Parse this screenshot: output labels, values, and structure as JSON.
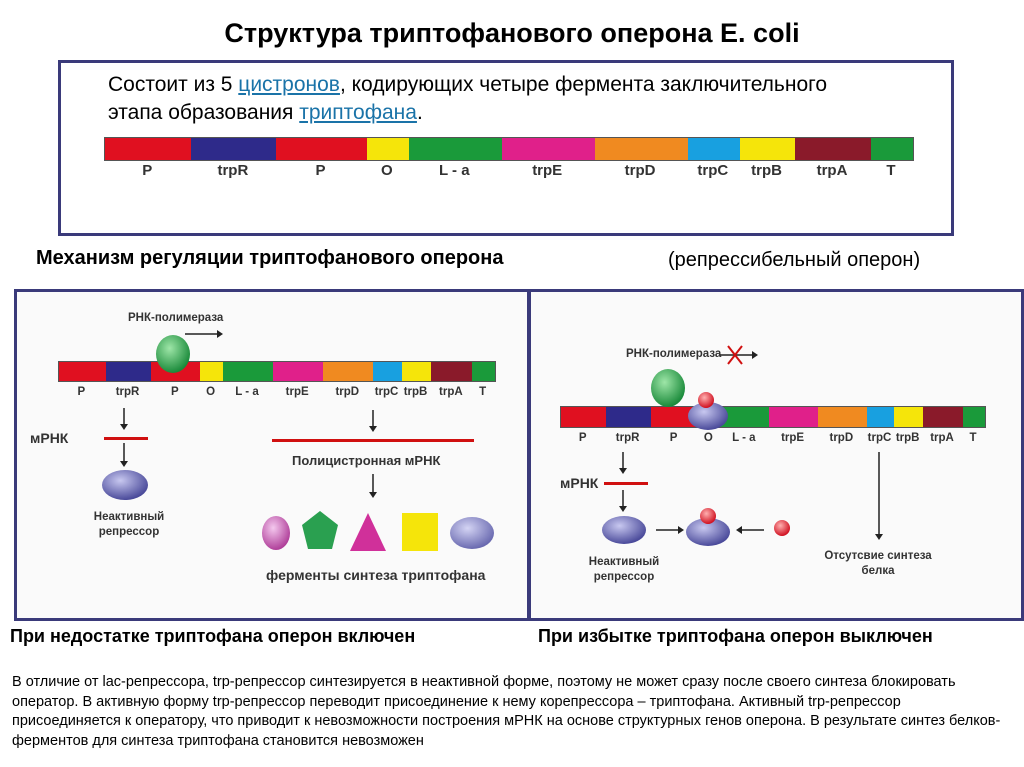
{
  "title": "Структура триптофанового оперона E. coli",
  "intro": {
    "part1": "Состоит из 5 ",
    "link1": "цистронов",
    "part2": ", кодирующих четыре фермента заключительного этапа образования ",
    "link2": "триптофана",
    "part3": "."
  },
  "operon_segments": [
    {
      "label": "P",
      "color": "#e01020"
    },
    {
      "label": "trpR",
      "color": "#2e2a8a"
    },
    {
      "label": "P",
      "color": "#e01020"
    },
    {
      "label": "O",
      "color": "#f5e50a"
    },
    {
      "label": "L - a",
      "color": "#1a9a3a"
    },
    {
      "label": "trpE",
      "color": "#e0208a"
    },
    {
      "label": "trpD",
      "color": "#f08a20"
    },
    {
      "label": "trpC",
      "color": "#18a0e0"
    },
    {
      "label": "trpB",
      "color": "#f5e50a"
    },
    {
      "label": "trpA",
      "color": "#8a1a2a"
    },
    {
      "label": "T",
      "color": "#1a9a3a"
    }
  ],
  "mechanism": {
    "heading": "Механизм регуляции триптофанового оперона",
    "note": "(репрессибельный оперон)"
  },
  "left_panel": {
    "polymerase_label": "РНК-полимераза",
    "mrna_label": "мРНК",
    "inactive_repressor": "Неактивный репрессор",
    "polycistronic": "Полицистронная мРНК",
    "enzymes_label": "ферменты синтеза триптофана",
    "caption": "При недостатке триптофана оперон включен"
  },
  "right_panel": {
    "polymerase_label": "РНК-полимераза",
    "mrna_label": "мРНК",
    "inactive_repressor": "Неактивный репрессор",
    "no_synthesis": "Отсутсвие синтеза белка",
    "caption": "При избытке триптофана оперон выключен"
  },
  "paragraph": "В отличие от lac-репрессора, trp-репрессор синтезируется в неактивной форме, поэтому не может сразу после своего синтеза блокировать оператор. В активную форму trp-репрессор переводит присоединение к нему корепрессора – триптофана. Активный trp-репрессор присоединяется к оператору, что приводит к невозможности построения мРНК на основе структурных генов оперона. В результате синтез белков-ферментов для синтеза триптофана становится невозможен"
}
